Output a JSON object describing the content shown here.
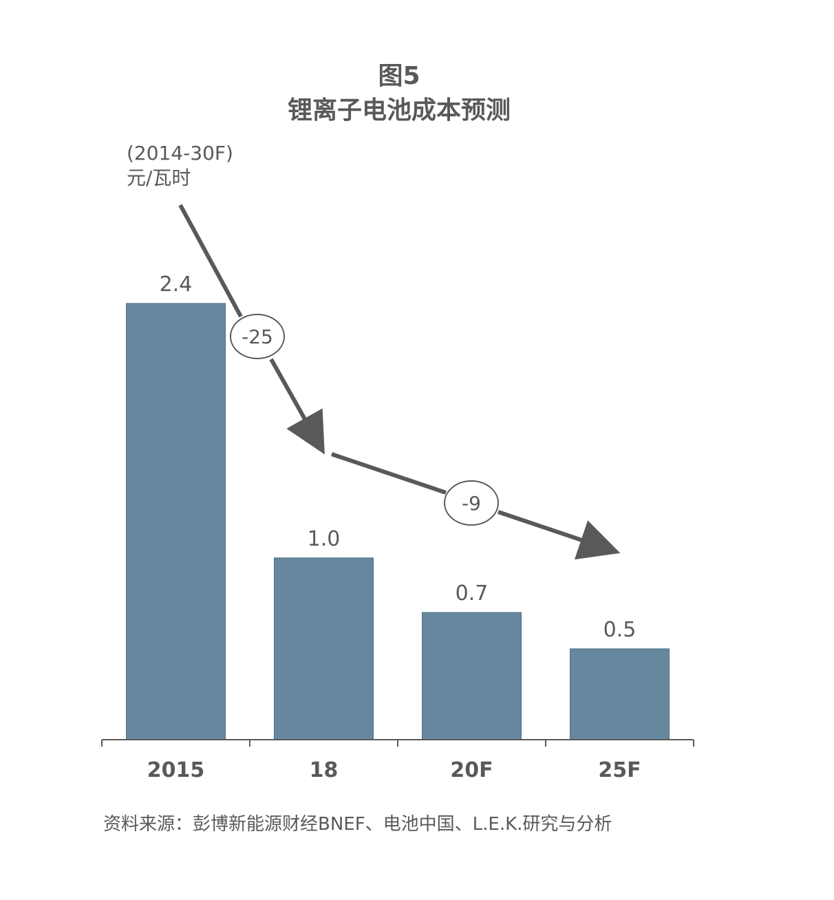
{
  "chart_data": {
    "type": "bar",
    "title_line1": "图5",
    "title_line2": "锂离子电池成本预测",
    "unit_line1": "(2014-30F)",
    "unit_line2": "元/瓦时",
    "categories": [
      "2015",
      "18",
      "20F",
      "25F"
    ],
    "values": [
      2.4,
      1.0,
      0.7,
      0.5
    ],
    "value_labels": [
      "2.4",
      "1.0",
      "0.7",
      "0.5"
    ],
    "ylim": [
      0,
      2.4
    ],
    "grid": false,
    "annotations": [
      {
        "label": "-25",
        "from_category": "2015",
        "to_category": "18"
      },
      {
        "label": "-9",
        "from_category": "18",
        "to_category": "25F"
      }
    ],
    "source": "资料来源：彭博新能源财经BNEF、电池中国、L.E.K.研究与分析",
    "colors": {
      "bar": "#66889f",
      "bar_stroke": "#4e6f86",
      "text": "#595959",
      "arrow": "#595959",
      "axis": "#595959"
    }
  }
}
